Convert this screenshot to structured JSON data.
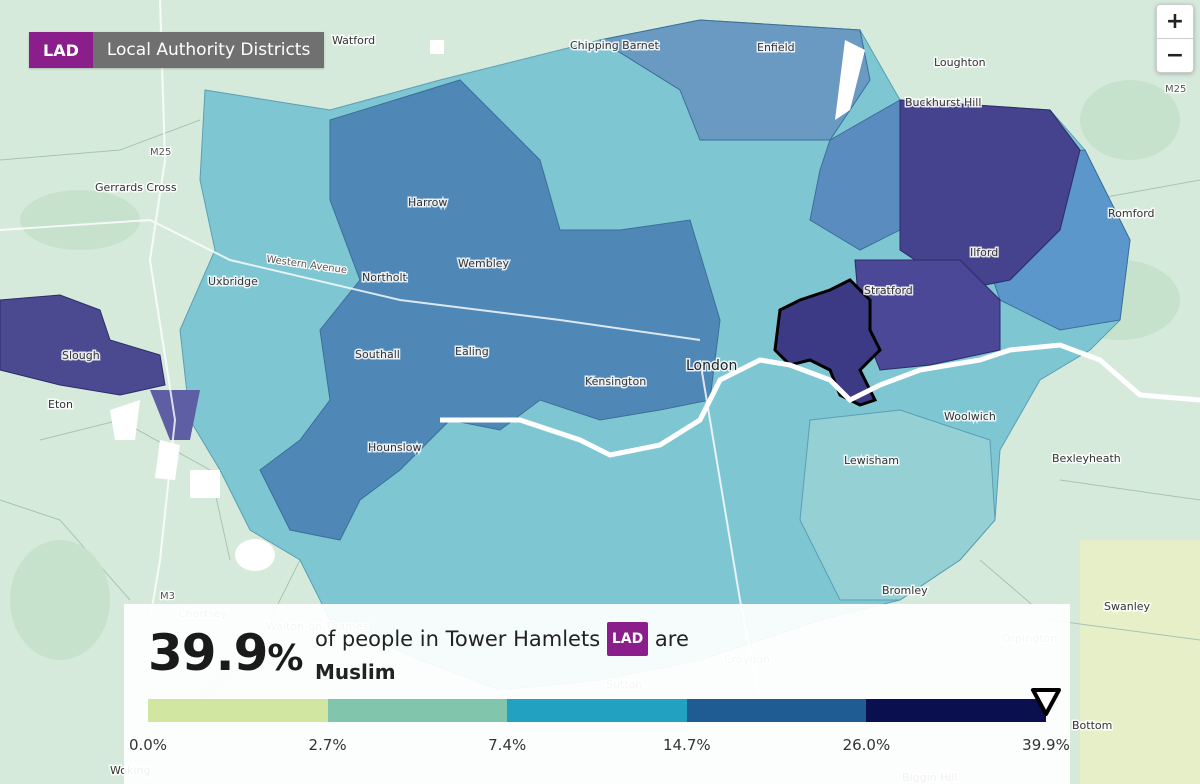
{
  "geography": {
    "code": "LAD",
    "name": "Local Authority Districts"
  },
  "zoom": {
    "in_label": "+",
    "out_label": "−"
  },
  "info": {
    "value": "39.9",
    "unit": "%",
    "prefix": "of people in Tower Hamlets",
    "badge": "LAD",
    "suffix": "are",
    "category": "Muslim"
  },
  "legend": {
    "breaks": [
      "0.0%",
      "2.7%",
      "7.4%",
      "14.7%",
      "26.0%",
      "39.9%"
    ],
    "colors": [
      "#d1e6a0",
      "#82c5ad",
      "#22a1c0",
      "#1e5c93",
      "#0a0f4f"
    ],
    "selected_value": 39.9
  },
  "places": [
    {
      "name": "Watford"
    },
    {
      "name": "Chipping Barnet"
    },
    {
      "name": "Enfield"
    },
    {
      "name": "Loughton"
    },
    {
      "name": "M25"
    },
    {
      "name": "Buckhurst Hill"
    },
    {
      "name": "M25"
    },
    {
      "name": "Gerrards Cross"
    },
    {
      "name": "Harrow"
    },
    {
      "name": "Romford"
    },
    {
      "name": "Western Avenue"
    },
    {
      "name": "Wembley"
    },
    {
      "name": "Ilford"
    },
    {
      "name": "Uxbridge"
    },
    {
      "name": "Northolt"
    },
    {
      "name": "Stratford"
    },
    {
      "name": "Slough"
    },
    {
      "name": "Southall"
    },
    {
      "name": "Ealing"
    },
    {
      "name": "London"
    },
    {
      "name": "Kensington"
    },
    {
      "name": "Eton"
    },
    {
      "name": "Woolwich"
    },
    {
      "name": "Hounslow"
    },
    {
      "name": "Lewisham"
    },
    {
      "name": "Bexleyheath"
    },
    {
      "name": "M3"
    },
    {
      "name": "Bromley"
    },
    {
      "name": "Swanley"
    },
    {
      "name": "Chertsey"
    },
    {
      "name": "Walton-on-Thames"
    },
    {
      "name": "Orpington"
    },
    {
      "name": "Croydon"
    },
    {
      "name": "Sutton"
    },
    {
      "name": "Bottom"
    },
    {
      "name": "Woking"
    },
    {
      "name": "Biggin Hill"
    }
  ]
}
